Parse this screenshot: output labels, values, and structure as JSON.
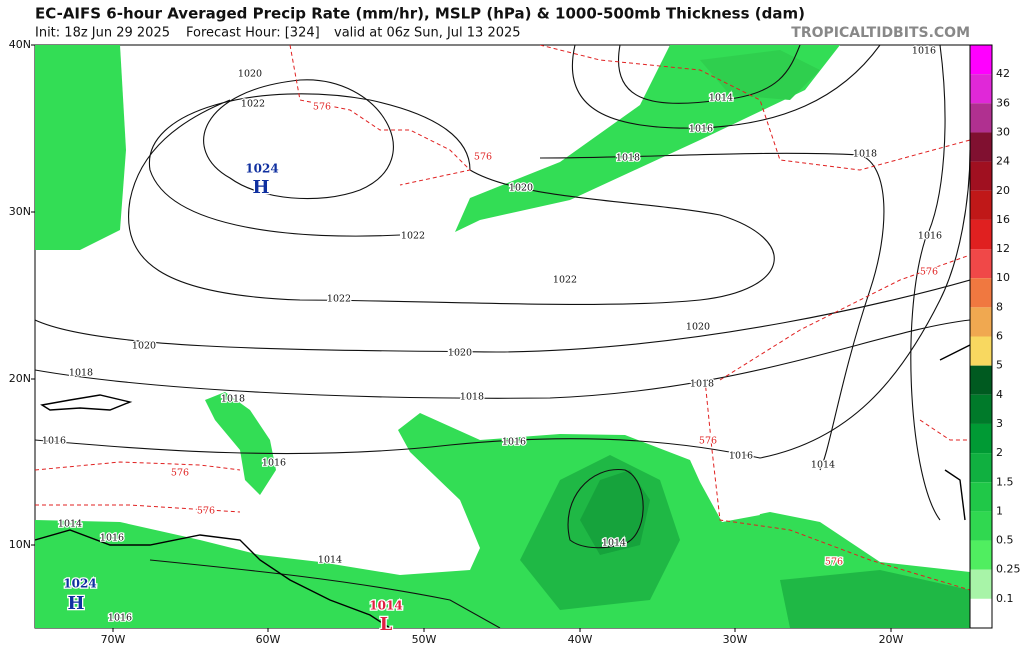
{
  "header": {
    "title": "EC-AIFS 6-hour Averaged Precip Rate (mm/hr), MSLP (hPa) & 1000-500mb Thickness (dam)",
    "init": "Init: 18z Jun 29 2025",
    "forecast_hour": "Forecast Hour: [324]",
    "valid": "valid at 06z Sun, Jul 13 2025",
    "source": "TROPICALTIDBITS.COM"
  },
  "latitude_labels": [
    "40N",
    "30N",
    "20N",
    "10N"
  ],
  "longitude_labels": [
    "70W",
    "60W",
    "50W",
    "40W",
    "30W",
    "20W"
  ],
  "colorbar": {
    "labels": [
      "42",
      "36",
      "30",
      "24",
      "20",
      "16",
      "12",
      "10",
      "8",
      "6",
      "5",
      "4",
      "3",
      "2",
      "1.5",
      "1",
      "0.5",
      "0.25",
      "0.1"
    ]
  },
  "map_labels": [
    "1020",
    "1022",
    "1024",
    "H",
    "576",
    "576",
    "1020",
    "1022",
    "1022",
    "1022",
    "1020",
    "1020",
    "1020",
    "1018",
    "1018",
    "1018",
    "1018",
    "1016",
    "1016",
    "1016",
    "1016",
    "576",
    "576",
    "576",
    "1014",
    "1014",
    "1014",
    "1016",
    "1014",
    "1016",
    "1018",
    "1018",
    "1016",
    "576",
    "1014",
    "576",
    "1016",
    "1014",
    "L",
    "1024",
    "H",
    "1016"
  ]
}
